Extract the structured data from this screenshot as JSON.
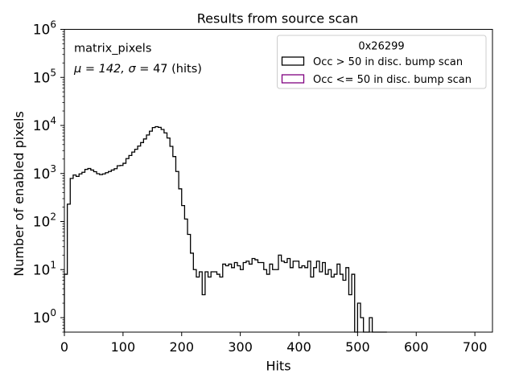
{
  "chart_data": {
    "type": "histogram",
    "title": "Results from source scan",
    "xlabel": "Hits",
    "ylabel": "Number of enabled pixels",
    "xlim": [
      0,
      730
    ],
    "ylim": [
      0.5,
      1000000
    ],
    "yscale": "log",
    "grid": false,
    "legend_placement": "top-right",
    "legend_title": "0x26299",
    "x_ticks": [
      {
        "value": 0,
        "label": "0"
      },
      {
        "value": 100,
        "label": "100"
      },
      {
        "value": 200,
        "label": "200"
      },
      {
        "value": 300,
        "label": "300"
      },
      {
        "value": 400,
        "label": "400"
      },
      {
        "value": 500,
        "label": "500"
      },
      {
        "value": 600,
        "label": "600"
      },
      {
        "value": 700,
        "label": "700"
      }
    ],
    "y_ticks": [
      {
        "value": 1,
        "base": "10",
        "exp": "0"
      },
      {
        "value": 10,
        "base": "10",
        "exp": "1"
      },
      {
        "value": 100,
        "base": "10",
        "exp": "2"
      },
      {
        "value": 1000,
        "base": "10",
        "exp": "3"
      },
      {
        "value": 10000,
        "base": "10",
        "exp": "4"
      },
      {
        "value": 100000,
        "base": "10",
        "exp": "5"
      },
      {
        "value": 1000000,
        "base": "10",
        "exp": "6"
      }
    ],
    "annotations": {
      "name": "matrix_pixels",
      "stats_prefix": "μ = 142, ",
      "stats_sigma": "σ",
      "stats_suffix": " = 47 (hits)"
    },
    "series": [
      {
        "name": "Occ > 50 in disc. bump scan",
        "color": "#000000",
        "bin_width": 5,
        "bin_start": 0,
        "values": [
          8,
          230,
          790,
          930,
          870,
          980,
          1060,
          1220,
          1270,
          1180,
          1090,
          990,
          950,
          980,
          1040,
          1100,
          1180,
          1260,
          1450,
          1470,
          1630,
          2040,
          2370,
          2790,
          3190,
          3730,
          4400,
          5230,
          6330,
          7600,
          9050,
          9450,
          9120,
          8240,
          7010,
          5470,
          3670,
          2250,
          1100,
          480,
          215,
          113,
          54,
          22,
          10,
          7,
          9,
          3,
          9,
          7,
          9,
          9,
          8,
          7,
          13,
          12,
          13,
          11,
          14,
          12,
          10,
          14,
          15,
          13,
          17,
          16,
          14,
          14,
          10,
          8,
          13,
          10,
          10,
          20,
          15,
          14,
          17,
          11,
          15,
          15,
          11,
          12,
          11,
          15,
          7,
          11,
          15,
          9,
          14,
          8,
          10,
          7,
          8,
          13,
          8,
          6,
          11,
          3,
          8,
          0.5,
          2,
          1,
          0.5,
          0.5,
          1,
          0.5,
          0.5,
          0.5,
          0.5,
          0.5
        ]
      },
      {
        "name": "Occ <= 50 in disc. bump scan",
        "color": "#800080",
        "values": []
      }
    ]
  }
}
